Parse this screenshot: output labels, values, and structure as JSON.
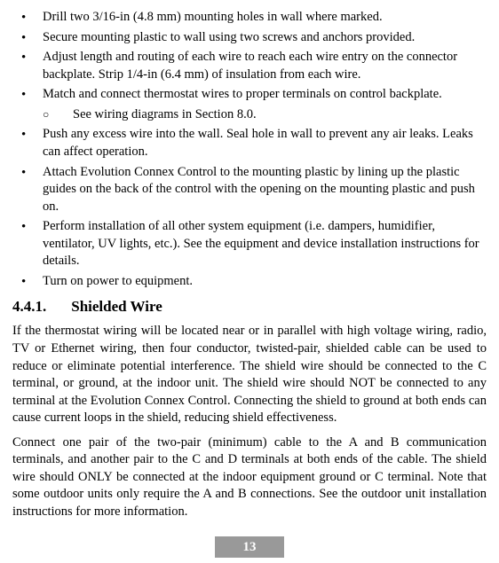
{
  "bullets": [
    {
      "text": "Drill two 3/16-in (4.8 mm) mounting holes in wall where marked."
    },
    {
      "text": "Secure mounting plastic to wall using two screws and anchors provided."
    },
    {
      "text": "Adjust length and routing of each wire to reach each wire entry on the connector backplate. Strip 1/4-in (6.4 mm) of insulation from each wire."
    },
    {
      "text": "Match and connect thermostat wires to proper terminals on control backplate.",
      "sub": [
        "See wiring diagrams in Section 8.0."
      ]
    },
    {
      "text": "Push any excess wire into the wall. Seal hole in wall to prevent any air leaks. Leaks can affect operation."
    },
    {
      "text": "Attach Evolution Connex Control to the mounting plastic by lining up the plastic guides on the back of the control with the opening on the mounting plastic and push on."
    },
    {
      "text": "Perform installation of all other system equipment (i.e. dampers, humidifier, ventilator, UV lights, etc.). See the equipment and device installation instructions for details."
    },
    {
      "text": "Turn on power to equipment."
    }
  ],
  "heading": {
    "num": "4.4.1.",
    "title": "Shielded Wire"
  },
  "para1": "If the thermostat wiring will be located near or in parallel with high voltage wiring, radio, TV or Ethernet wiring, then four conductor, twisted-pair, shielded cable can be used to reduce or eliminate potential interference. The shield wire should be connected to the C terminal, or ground, at the indoor unit. The shield wire should NOT be connected to any terminal at the Evolution Connex Control. Connecting the shield to ground at both ends can cause current loops in the shield, reducing shield effectiveness.",
  "para2": "Connect one pair of the two-pair (minimum) cable to the A and B communication terminals, and another pair to the C and D terminals at both ends of the cable. The shield wire should ONLY be connected at the indoor equipment ground or C terminal. Note that some outdoor units only require the A and B connections. See the outdoor unit installation instructions for more information.",
  "pagenum": "13"
}
